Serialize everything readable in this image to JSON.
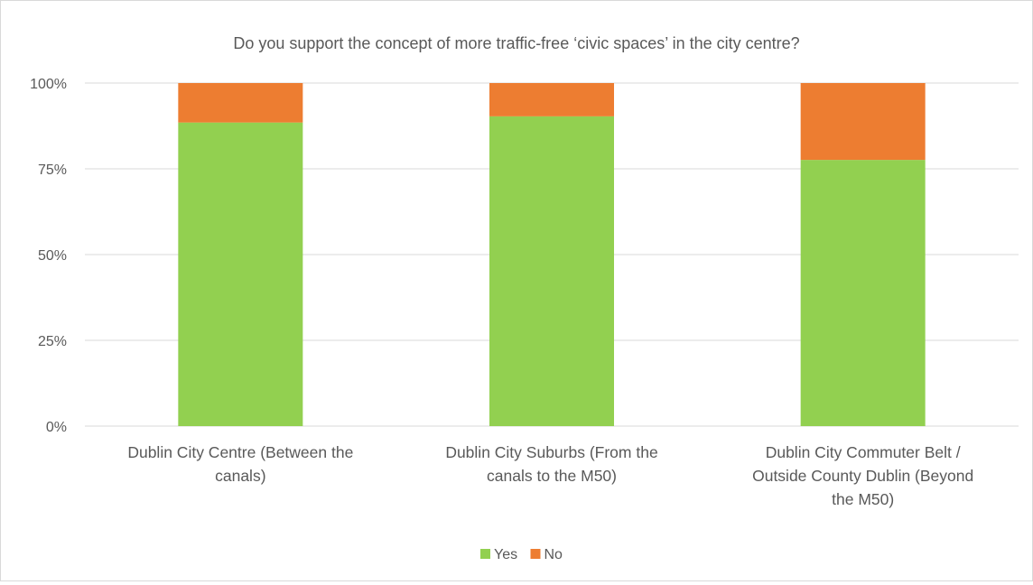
{
  "chart_data": {
    "type": "bar",
    "stacked": "percent",
    "title": "Do you support the concept of more traffic-free ‘civic spaces’ in the city centre?",
    "categories": [
      [
        "Dublin City Centre (Between the",
        "canals)"
      ],
      [
        "Dublin City Suburbs (From the",
        "canals to the M50)"
      ],
      [
        "Dublin City Commuter Belt /",
        "Outside County Dublin (Beyond",
        "the M50)"
      ]
    ],
    "series": [
      {
        "name": "Yes",
        "color": "#92d050",
        "values": [
          88.5,
          90.3,
          77.6
        ]
      },
      {
        "name": "No",
        "color": "#ed7d31",
        "values": [
          11.5,
          9.7,
          22.4
        ]
      }
    ],
    "yticks": [
      "0%",
      "25%",
      "50%",
      "75%",
      "100%"
    ],
    "ylim": [
      0,
      100
    ],
    "grid": true,
    "legend_position": "bottom"
  }
}
